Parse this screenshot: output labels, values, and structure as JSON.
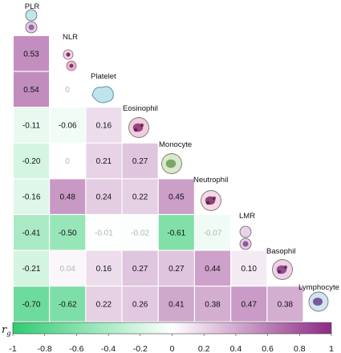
{
  "chart_data": {
    "type": "heatmap",
    "layout": "lower-triangle",
    "variables": [
      "PLR",
      "NLR",
      "Platelet",
      "Eosinophil",
      "Monocyte",
      "Neutrophil",
      "LMR",
      "Basophil",
      "Lymphocyte"
    ],
    "rows": [
      {
        "label": "NLR",
        "values": [
          0.53
        ]
      },
      {
        "label": "Platelet",
        "values": [
          0.54,
          0
        ]
      },
      {
        "label": "Eosinophil",
        "values": [
          -0.11,
          -0.06,
          0.16
        ]
      },
      {
        "label": "Monocyte",
        "values": [
          -0.2,
          0,
          0.21,
          0.27
        ]
      },
      {
        "label": "Neutrophil",
        "values": [
          -0.16,
          0.48,
          0.24,
          0.22,
          0.45
        ]
      },
      {
        "label": "LMR",
        "values": [
          -0.41,
          -0.5,
          -0.01,
          -0.02,
          -0.61,
          -0.07
        ]
      },
      {
        "label": "Basophil",
        "values": [
          -0.21,
          0.04,
          0.16,
          0.27,
          0.27,
          0.44,
          0.1
        ]
      },
      {
        "label": "Lymphocyte",
        "values": [
          -0.7,
          -0.62,
          0.22,
          0.26,
          0.41,
          0.38,
          0.47,
          0.38
        ]
      }
    ],
    "cell_labels": [
      [
        "0.53"
      ],
      [
        "0.54",
        "0"
      ],
      [
        "-0.11",
        "-0.06",
        "0.16"
      ],
      [
        "-0.20",
        "0",
        "0.21",
        "0.27"
      ],
      [
        "-0.16",
        "0.48",
        "0.24",
        "0.22",
        "0.45"
      ],
      [
        "-0.41",
        "-0.50",
        "-0.01",
        "-0.02",
        "-0.61",
        "-0.07"
      ],
      [
        "-0.21",
        "0.04",
        "0.16",
        "0.27",
        "0.27",
        "0.44",
        "0.10"
      ],
      [
        "-0.70",
        "-0.62",
        "0.22",
        "0.26",
        "0.41",
        "0.38",
        "0.47",
        "0.38"
      ]
    ],
    "faded_cells": [
      [
        1,
        1
      ],
      [
        3,
        1
      ],
      [
        5,
        2
      ],
      [
        5,
        3
      ],
      [
        5,
        5
      ],
      [
        6,
        1
      ]
    ],
    "colorbar": {
      "title": "r",
      "title_subscript": "g",
      "range": [
        -1,
        1
      ],
      "ticks": [
        "-1",
        "-0.8",
        "-0.6",
        "-0.4",
        "-0.2",
        "0",
        "0.2",
        "0.4",
        "0.6",
        "0.8",
        "1"
      ],
      "tick_values": [
        -1,
        -0.8,
        -0.6,
        -0.4,
        -0.2,
        0,
        0.2,
        0.4,
        0.6,
        0.8,
        1
      ],
      "color_negative": "#2ecc71",
      "color_zero": "#ffffff",
      "color_positive": "#8e2a86"
    }
  }
}
